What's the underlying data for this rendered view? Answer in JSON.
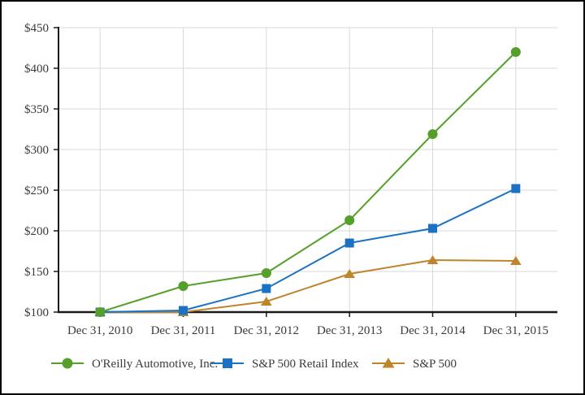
{
  "frame": {
    "background": "#ffffff",
    "border_color": "#000000"
  },
  "chart_data": {
    "type": "line",
    "title": "",
    "xlabel": "",
    "ylabel": "",
    "x_categories": [
      "Dec 31, 2010",
      "Dec 31, 2011",
      "Dec 31, 2012",
      "Dec 31, 2013",
      "Dec 31, 2014",
      "Dec 31, 2015"
    ],
    "y_axis": {
      "min": 100,
      "max": 450,
      "step": 50,
      "tick_prefix": "$",
      "tick_labels": [
        "$100",
        "$150",
        "$200",
        "$250",
        "$300",
        "$350",
        "$400",
        "$450"
      ]
    },
    "series": [
      {
        "name": "O'Reilly Automotive, Inc.",
        "marker": "circle",
        "color": "#55a02a",
        "values": [
          100,
          132,
          148,
          213,
          319,
          420
        ]
      },
      {
        "name": "S&P 500 Retail Index",
        "marker": "square",
        "color": "#1b72c2",
        "values": [
          100,
          102,
          129,
          185,
          203,
          252
        ]
      },
      {
        "name": "S&P 500",
        "marker": "triangle",
        "color": "#be852a",
        "values": [
          100,
          100,
          113,
          147,
          164,
          163
        ]
      }
    ],
    "legend": {
      "position": "bottom",
      "entries": [
        "O'Reilly Automotive, Inc.",
        "S&P 500 Retail Index",
        "S&P 500"
      ]
    },
    "grid": true,
    "colors": {
      "axis": "#1a1a1a",
      "grid": "#d9d9d9",
      "text": "#3a3a3a"
    }
  }
}
